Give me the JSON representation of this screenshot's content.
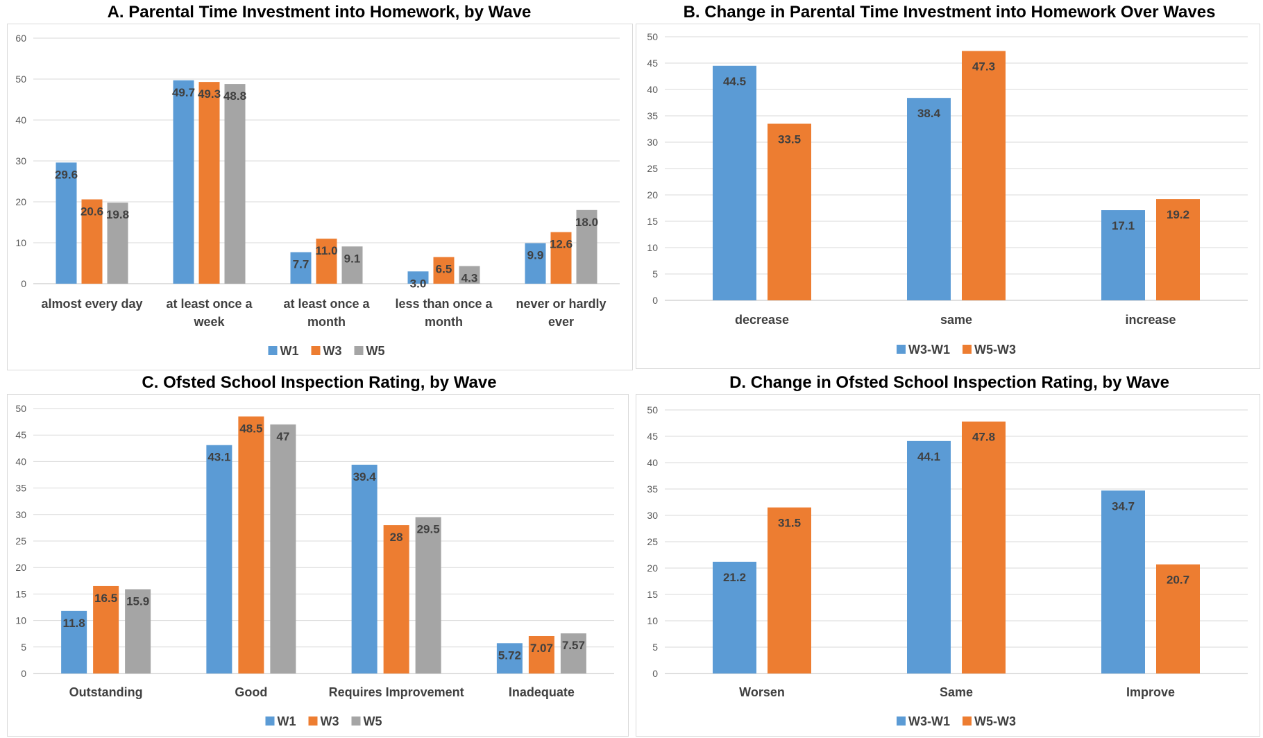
{
  "colors": {
    "blue": "#5B9BD5",
    "orange": "#ED7D31",
    "gray": "#A5A5A5",
    "grid": "#D9D9D9",
    "axis": "#BFBFBF"
  },
  "chart_data": [
    {
      "type": "bar",
      "title": "A. Parental Time Investment into Homework, by Wave",
      "categories": [
        [
          "almost every day"
        ],
        [
          "at least once a",
          "week"
        ],
        [
          "at least once a",
          "month"
        ],
        [
          "less than once a",
          "month"
        ],
        [
          "never or hardly",
          "ever"
        ]
      ],
      "series": [
        {
          "name": "W1",
          "values": [
            29.6,
            49.7,
            7.7,
            3.0,
            9.9
          ],
          "labels": [
            "29.6",
            "49.7",
            "7.7",
            "3.0",
            "9.9"
          ]
        },
        {
          "name": "W3",
          "values": [
            20.6,
            49.3,
            11.0,
            6.5,
            12.6
          ],
          "labels": [
            "20.6",
            "49.3",
            "11.0",
            "6.5",
            "12.6"
          ]
        },
        {
          "name": "W5",
          "values": [
            19.8,
            48.8,
            9.1,
            4.3,
            18.0
          ],
          "labels": [
            "19.8",
            "48.8",
            "9.1",
            "4.3",
            "18.0"
          ]
        }
      ],
      "ylim": [
        0,
        60
      ],
      "ystep": 10,
      "grid": true,
      "legend": "bottom"
    },
    {
      "type": "bar",
      "title": "B. Change in Parental Time Investment into Homework Over Waves",
      "categories": [
        [
          "decrease"
        ],
        [
          "same"
        ],
        [
          "increase"
        ]
      ],
      "series": [
        {
          "name": "W3-W1",
          "values": [
            44.5,
            38.4,
            17.1
          ],
          "labels": [
            "44.5",
            "38.4",
            "17.1"
          ]
        },
        {
          "name": "W5-W3",
          "values": [
            33.5,
            47.3,
            19.2
          ],
          "labels": [
            "33.5",
            "47.3",
            "19.2"
          ]
        }
      ],
      "ylim": [
        0,
        50
      ],
      "ystep": 5,
      "grid": true,
      "legend": "bottom"
    },
    {
      "type": "bar",
      "title": "C. Ofsted School Inspection Rating, by Wave",
      "categories": [
        [
          "Outstanding"
        ],
        [
          "Good"
        ],
        [
          "Requires Improvement"
        ],
        [
          "Inadequate"
        ]
      ],
      "series": [
        {
          "name": "W1",
          "values": [
            11.8,
            43.1,
            39.4,
            5.72
          ],
          "labels": [
            "11.8",
            "43.1",
            "39.4",
            "5.72"
          ]
        },
        {
          "name": "W3",
          "values": [
            16.5,
            48.5,
            28,
            7.07
          ],
          "labels": [
            "16.5",
            "48.5",
            "28",
            "7.07"
          ]
        },
        {
          "name": "W5",
          "values": [
            15.9,
            47,
            29.5,
            7.57
          ],
          "labels": [
            "15.9",
            "47",
            "29.5",
            "7.57"
          ]
        }
      ],
      "ylim": [
        0,
        50
      ],
      "ystep": 5,
      "grid": true,
      "legend": "bottom"
    },
    {
      "type": "bar",
      "title": "D. Change in Ofsted School Inspection Rating, by Wave",
      "categories": [
        [
          "Worsen"
        ],
        [
          "Same"
        ],
        [
          "Improve"
        ]
      ],
      "series": [
        {
          "name": "W3-W1",
          "values": [
            21.2,
            44.1,
            34.7
          ],
          "labels": [
            "21.2",
            "44.1",
            "34.7"
          ]
        },
        {
          "name": "W5-W3",
          "values": [
            31.5,
            47.8,
            20.7
          ],
          "labels": [
            "31.5",
            "47.8",
            "20.7"
          ]
        }
      ],
      "ylim": [
        0,
        50
      ],
      "ystep": 5,
      "grid": true,
      "legend": "bottom"
    }
  ]
}
